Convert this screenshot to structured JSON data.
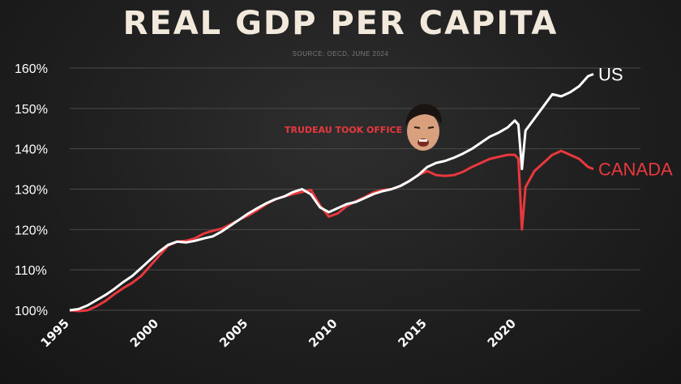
{
  "chart_data": {
    "type": "line",
    "title": "REAL GDP PER CAPITA",
    "subtitle": "SOURCE: OECD, JUNE 2024",
    "xlabel": "",
    "ylabel": "",
    "xlim": [
      1995,
      2024.5
    ],
    "ylim": [
      100,
      160
    ],
    "y_ticks": [
      "100%",
      "110%",
      "120%",
      "130%",
      "140%",
      "150%",
      "160%"
    ],
    "x_ticks": [
      "1995",
      "2000",
      "2005",
      "2010",
      "2015",
      "2020"
    ],
    "grid": true,
    "colors": {
      "US": "#ffffff",
      "CANADA": "#e8383d",
      "grid": "#4a4a4a"
    },
    "annotation": {
      "text": "TRUDEAU TOOK OFFICE",
      "x": 2015.8,
      "y": 135,
      "image": "trudeau-face"
    },
    "series": [
      {
        "name": "US",
        "points": [
          [
            1995.0,
            100
          ],
          [
            1995.5,
            100.3
          ],
          [
            1996.0,
            101.2
          ],
          [
            1996.5,
            102.5
          ],
          [
            1997.0,
            103.8
          ],
          [
            1997.5,
            105.3
          ],
          [
            1998.0,
            107.0
          ],
          [
            1998.5,
            108.5
          ],
          [
            1999.0,
            110.5
          ],
          [
            1999.5,
            112.5
          ],
          [
            2000.0,
            114.5
          ],
          [
            2000.5,
            116.2
          ],
          [
            2001.0,
            117.0
          ],
          [
            2001.5,
            116.8
          ],
          [
            2002.0,
            117.2
          ],
          [
            2002.5,
            117.8
          ],
          [
            2003.0,
            118.3
          ],
          [
            2003.5,
            119.5
          ],
          [
            2004.0,
            121.0
          ],
          [
            2004.5,
            122.5
          ],
          [
            2005.0,
            124.0
          ],
          [
            2005.5,
            125.3
          ],
          [
            2006.0,
            126.5
          ],
          [
            2006.5,
            127.5
          ],
          [
            2007.0,
            128.2
          ],
          [
            2007.5,
            129.3
          ],
          [
            2008.0,
            130.0
          ],
          [
            2008.5,
            128.7
          ],
          [
            2009.0,
            125.5
          ],
          [
            2009.5,
            124.3
          ],
          [
            2010.0,
            125.3
          ],
          [
            2010.5,
            126.3
          ],
          [
            2011.0,
            126.8
          ],
          [
            2011.5,
            127.8
          ],
          [
            2012.0,
            128.8
          ],
          [
            2012.5,
            129.5
          ],
          [
            2013.0,
            130.0
          ],
          [
            2013.5,
            130.8
          ],
          [
            2014.0,
            132.0
          ],
          [
            2014.5,
            133.5
          ],
          [
            2015.0,
            135.5
          ],
          [
            2015.5,
            136.5
          ],
          [
            2016.0,
            137.0
          ],
          [
            2016.5,
            137.8
          ],
          [
            2017.0,
            138.8
          ],
          [
            2017.5,
            140.0
          ],
          [
            2018.0,
            141.5
          ],
          [
            2018.5,
            143.0
          ],
          [
            2019.0,
            144.0
          ],
          [
            2019.5,
            145.3
          ],
          [
            2019.9,
            147.0
          ],
          [
            2020.1,
            146.0
          ],
          [
            2020.3,
            135.0
          ],
          [
            2020.5,
            144.5
          ],
          [
            2021.0,
            147.5
          ],
          [
            2021.5,
            150.5
          ],
          [
            2022.0,
            153.5
          ],
          [
            2022.5,
            153.0
          ],
          [
            2023.0,
            154.0
          ],
          [
            2023.5,
            155.5
          ],
          [
            2024.0,
            158.0
          ],
          [
            2024.3,
            158.5
          ]
        ]
      },
      {
        "name": "CANADA",
        "points": [
          [
            1995.0,
            100
          ],
          [
            1995.5,
            99.8
          ],
          [
            1996.0,
            100.0
          ],
          [
            1996.5,
            101.0
          ],
          [
            1997.0,
            102.3
          ],
          [
            1997.5,
            104.0
          ],
          [
            1998.0,
            105.5
          ],
          [
            1998.5,
            106.8
          ],
          [
            1999.0,
            108.5
          ],
          [
            1999.5,
            111.0
          ],
          [
            2000.0,
            113.5
          ],
          [
            2000.5,
            116.0
          ],
          [
            2001.0,
            117.0
          ],
          [
            2001.5,
            117.2
          ],
          [
            2002.0,
            117.8
          ],
          [
            2002.5,
            119.0
          ],
          [
            2003.0,
            119.7
          ],
          [
            2003.5,
            120.2
          ],
          [
            2004.0,
            121.3
          ],
          [
            2004.5,
            122.5
          ],
          [
            2005.0,
            123.5
          ],
          [
            2005.5,
            124.8
          ],
          [
            2006.0,
            126.3
          ],
          [
            2006.5,
            127.5
          ],
          [
            2007.0,
            128.2
          ],
          [
            2007.5,
            128.8
          ],
          [
            2008.0,
            129.3
          ],
          [
            2008.5,
            129.8
          ],
          [
            2009.0,
            126.0
          ],
          [
            2009.5,
            123.2
          ],
          [
            2010.0,
            124.0
          ],
          [
            2010.5,
            125.8
          ],
          [
            2011.0,
            127.0
          ],
          [
            2011.5,
            128.0
          ],
          [
            2012.0,
            129.2
          ],
          [
            2012.5,
            129.8
          ],
          [
            2013.0,
            130.0
          ],
          [
            2013.5,
            130.8
          ],
          [
            2014.0,
            132.0
          ],
          [
            2014.5,
            133.5
          ],
          [
            2015.0,
            134.5
          ],
          [
            2015.5,
            133.5
          ],
          [
            2016.0,
            133.3
          ],
          [
            2016.5,
            133.5
          ],
          [
            2017.0,
            134.3
          ],
          [
            2017.5,
            135.5
          ],
          [
            2018.0,
            136.5
          ],
          [
            2018.5,
            137.5
          ],
          [
            2019.0,
            138.0
          ],
          [
            2019.5,
            138.5
          ],
          [
            2019.9,
            138.5
          ],
          [
            2020.1,
            137.5
          ],
          [
            2020.3,
            120.0
          ],
          [
            2020.5,
            130.5
          ],
          [
            2021.0,
            134.5
          ],
          [
            2021.5,
            136.5
          ],
          [
            2022.0,
            138.5
          ],
          [
            2022.5,
            139.5
          ],
          [
            2023.0,
            138.5
          ],
          [
            2023.5,
            137.5
          ],
          [
            2024.0,
            135.5
          ],
          [
            2024.3,
            135.0
          ]
        ]
      }
    ]
  }
}
